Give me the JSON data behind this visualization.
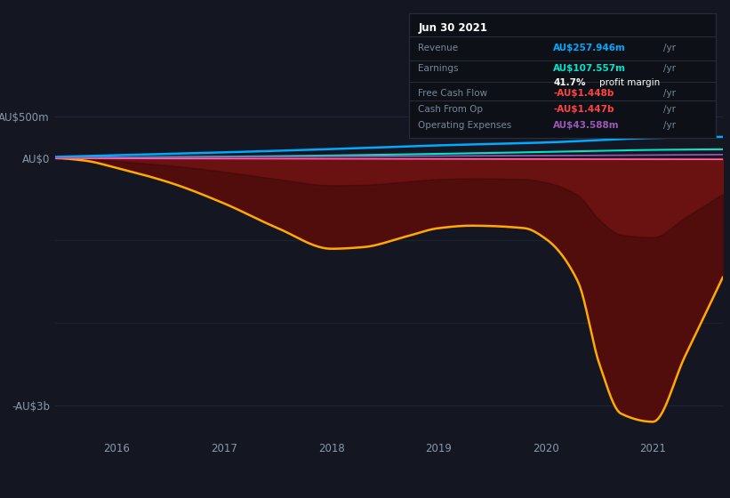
{
  "bg_color": "#141722",
  "plot_bg_color": "#141722",
  "y_labels": [
    "AU$500m",
    "AU$0",
    "-AU$3b"
  ],
  "y_ticks": [
    500000000,
    0,
    -3000000000
  ],
  "ylim": [
    -3400000000,
    650000000
  ],
  "xlim": [
    2015.42,
    2021.65
  ],
  "x_ticks": [
    2016,
    2017,
    2018,
    2019,
    2020,
    2021
  ],
  "revenue_color": "#00aaff",
  "earnings_color": "#00e5cc",
  "free_cash_flow_color": "#ff69b4",
  "cash_from_op_color": "#ffaa00",
  "operating_expenses_color": "#9b59b6",
  "fill_color_top": "#7a1a1a",
  "fill_color_bottom": "#3a0a0a",
  "grid_color": "#1e2535",
  "tick_color": "#8899aa",
  "tooltip_bg": "#0d1017",
  "tooltip_border": "#2a2e3a",
  "tooltip_label_color": "#778899",
  "tooltip_revenue_color": "#00aaff",
  "tooltip_earnings_color": "#00e5cc",
  "tooltip_neg_color": "#ff4444",
  "tooltip_opex_color": "#9b59b6",
  "legend_items": [
    "Revenue",
    "Earnings",
    "Free Cash Flow",
    "Cash From Op",
    "Operating Expenses"
  ]
}
